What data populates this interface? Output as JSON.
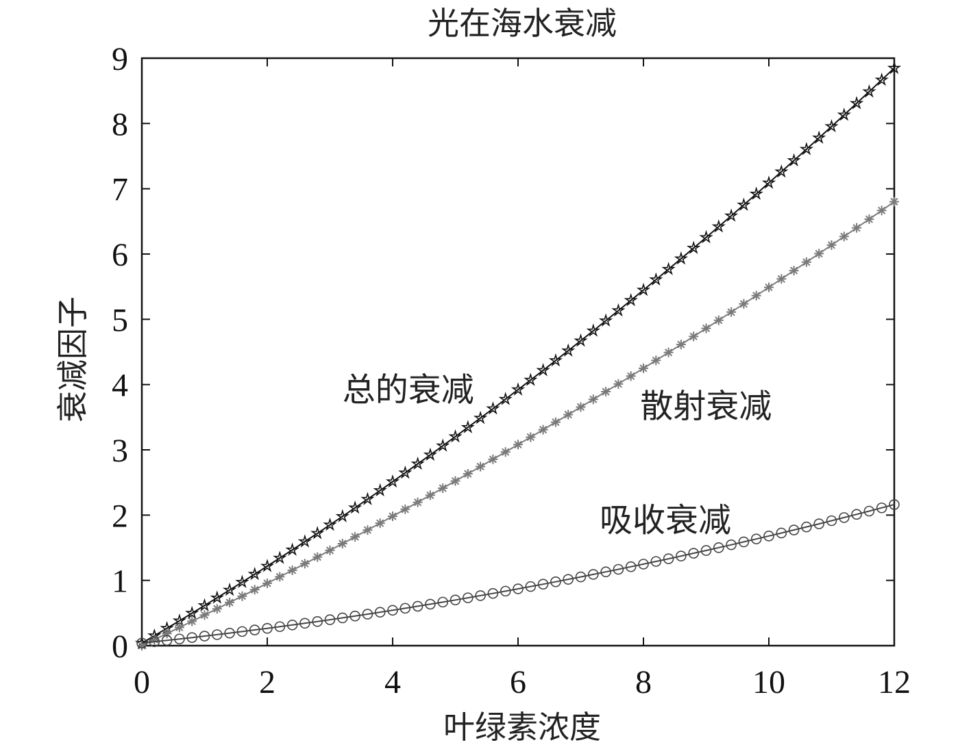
{
  "chart_data": {
    "type": "line",
    "title": "光在海水衰减",
    "xlabel": "叶绿素浓度",
    "ylabel": "衰减因子",
    "xlim": [
      0,
      12
    ],
    "ylim": [
      0,
      9
    ],
    "x_ticks": [
      0,
      2,
      4,
      6,
      8,
      10,
      12
    ],
    "y_ticks": [
      0,
      1,
      2,
      3,
      4,
      5,
      6,
      7,
      8,
      9
    ],
    "grid": false,
    "legend": "none",
    "x_step": 0.2,
    "series": [
      {
        "label": "总的衰减",
        "marker": "star",
        "color": "#111111",
        "curve": "c0 + c1*x + c2*x^2",
        "coefficients": [
          0.04,
          0.56,
          0.0145
        ]
      },
      {
        "label": "散射衰减",
        "marker": "asterisk",
        "color": "#7a7a7a",
        "curve": "c0 + c1*x + c2*x^2",
        "coefficients": [
          0.0,
          0.46,
          0.0089
        ]
      },
      {
        "label": "吸收衰减",
        "marker": "circle",
        "color": "#444444",
        "curve": "c0 + c1*x + c2*x^2",
        "coefficients": [
          0.04,
          0.1,
          0.0064
        ]
      }
    ],
    "annotations": [
      {
        "text": "总的衰减",
        "x": 3.2,
        "y": 3.75
      },
      {
        "text": "散射衰减",
        "x": 7.95,
        "y": 3.5
      },
      {
        "text": "吸收衰减",
        "x": 7.3,
        "y": 1.75
      }
    ]
  }
}
